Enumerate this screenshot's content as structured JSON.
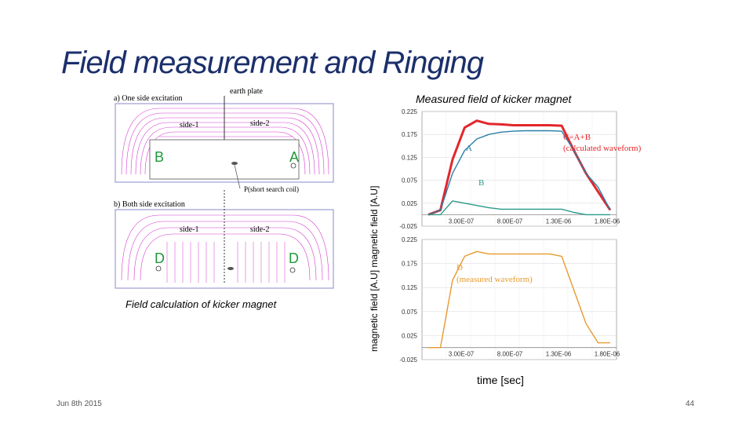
{
  "slide": {
    "title": "Field measurement and Ringing",
    "date": "Jun 8th 2015",
    "page": "44"
  },
  "field_calc": {
    "caption": "Field calculation of kicker magnet",
    "label_a": "a) One side excitation",
    "label_b": "b) Both side excitation",
    "earth_plate": "earth plate",
    "search_coil": "P(short search coil)",
    "side1": "side-1",
    "side2": "side-2",
    "side1b": "side-1",
    "side2b": "side-2",
    "B": "B",
    "A": "A",
    "D1": "D",
    "D2": "D"
  },
  "measured": {
    "title": "Measured field of kicker magnet",
    "ylabel": "magnetic field [A.U]  magnetic field [A.U]",
    "xlabel": "time [sec]"
  },
  "chart_data": [
    {
      "type": "line",
      "ylim": [
        -0.025,
        0.225
      ],
      "yticks": [
        "0.225",
        "0.175",
        "0.125",
        "0.075",
        "0.025",
        "-0.025"
      ],
      "xticks": [
        "3.00E-07",
        "8.00E-07",
        "1.30E-06",
        "1.80E-06"
      ],
      "annotations": [
        "C=A+B",
        "(calculated waveform)",
        "A",
        "B"
      ],
      "series": [
        {
          "name": "C=A+B",
          "color": "#e3262b",
          "values": [
            0.0,
            0.01,
            0.12,
            0.19,
            0.205,
            0.198,
            0.197,
            0.195,
            0.195,
            0.195,
            0.195,
            0.194,
            0.14,
            0.09,
            0.05,
            0.01
          ]
        },
        {
          "name": "A",
          "color": "#2a7fa8",
          "values": [
            0.0,
            0.01,
            0.09,
            0.14,
            0.165,
            0.175,
            0.18,
            0.182,
            0.183,
            0.183,
            0.183,
            0.182,
            0.14,
            0.09,
            0.06,
            0.01
          ]
        },
        {
          "name": "B",
          "color": "#2a9a8a",
          "values": [
            0.0,
            0.0,
            0.03,
            0.025,
            0.02,
            0.015,
            0.012,
            0.012,
            0.012,
            0.012,
            0.012,
            0.012,
            0.005,
            0.0,
            0.0,
            0.0
          ]
        }
      ]
    },
    {
      "type": "line",
      "ylim": [
        -0.025,
        0.225
      ],
      "yticks": [
        "0.225",
        "0.175",
        "0.125",
        "0.075",
        "0.025",
        "-0.025"
      ],
      "xticks": [
        "3.00E-07",
        "8.00E-07",
        "1.30E-06",
        "1.80E-06"
      ],
      "annotations": [
        "D",
        "(measured waveform)"
      ],
      "series": [
        {
          "name": "D",
          "color": "#e89a2e",
          "values": [
            0.0,
            0.0,
            0.14,
            0.19,
            0.2,
            0.195,
            0.195,
            0.195,
            0.195,
            0.195,
            0.195,
            0.19,
            0.12,
            0.05,
            0.01,
            0.01
          ]
        }
      ]
    }
  ]
}
